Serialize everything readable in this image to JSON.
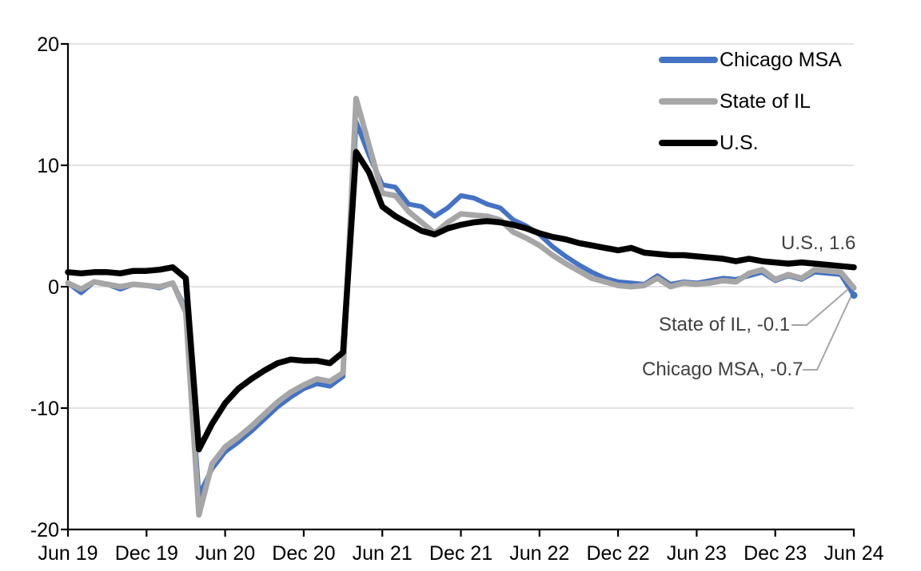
{
  "chart_data": {
    "type": "line",
    "title": "",
    "xlabel": "",
    "ylabel": "",
    "ylim": [
      -20,
      20
    ],
    "y_ticks": [
      -20,
      -10,
      0,
      10,
      20
    ],
    "y_ticklabels": [
      "-20",
      "-10",
      "0",
      "10",
      "20"
    ],
    "x_ticklabels": [
      "Jun 19",
      "Dec 19",
      "Jun 20",
      "Dec 20",
      "Jun 21",
      "Dec 21",
      "Jun 22",
      "Dec 22",
      "Jun 23",
      "Dec 23",
      "Jun 24"
    ],
    "grid": "horizontal",
    "legend_position": "top-right",
    "x": [
      "Jun 19",
      "Jul 19",
      "Aug 19",
      "Sep 19",
      "Oct 19",
      "Nov 19",
      "Dec 19",
      "Jan 20",
      "Feb 20",
      "Mar 20",
      "Apr 20",
      "May 20",
      "Jun 20",
      "Jul 20",
      "Aug 20",
      "Sep 20",
      "Oct 20",
      "Nov 20",
      "Dec 20",
      "Jan 21",
      "Feb 21",
      "Mar 21",
      "Apr 21",
      "May 21",
      "Jun 21",
      "Jul 21",
      "Aug 21",
      "Sep 21",
      "Oct 21",
      "Nov 21",
      "Dec 21",
      "Jan 22",
      "Feb 22",
      "Mar 22",
      "Apr 22",
      "May 22",
      "Jun 22",
      "Jul 22",
      "Aug 22",
      "Sep 22",
      "Oct 22",
      "Nov 22",
      "Dec 22",
      "Jan 23",
      "Feb 23",
      "Mar 23",
      "Apr 23",
      "May 23",
      "Jun 23",
      "Jul 23",
      "Aug 23",
      "Sep 23",
      "Oct 23",
      "Nov 23",
      "Dec 23",
      "Jan 24",
      "Feb 24",
      "Mar 24",
      "Apr 24",
      "May 24",
      "Jun 24"
    ],
    "series": [
      {
        "name": "Chicago MSA",
        "color": "#4472C4",
        "end_marker": true,
        "values": [
          0.3,
          -0.5,
          0.4,
          0.2,
          -0.2,
          0.2,
          0.1,
          -0.1,
          0.3,
          -1.8,
          -17.2,
          -15.0,
          -13.6,
          -12.8,
          -11.9,
          -10.9,
          -9.9,
          -9.1,
          -8.4,
          -8.0,
          -8.2,
          -7.4,
          13.6,
          10.8,
          8.4,
          8.2,
          6.8,
          6.6,
          5.8,
          6.5,
          7.5,
          7.3,
          6.8,
          6.5,
          5.5,
          5.0,
          4.3,
          3.3,
          2.5,
          1.8,
          1.2,
          0.7,
          0.4,
          0.3,
          0.2,
          0.9,
          0.2,
          0.4,
          0.3,
          0.5,
          0.7,
          0.6,
          0.9,
          1.2,
          0.5,
          0.9,
          0.6,
          1.2,
          1.1,
          1.0,
          -0.7
        ]
      },
      {
        "name": "State of IL",
        "color": "#A6A6A6",
        "end_marker": false,
        "values": [
          0.3,
          -0.2,
          0.4,
          0.2,
          0.0,
          0.2,
          0.1,
          0.0,
          0.3,
          -2.1,
          -18.8,
          -14.6,
          -13.2,
          -12.4,
          -11.5,
          -10.5,
          -9.5,
          -8.7,
          -8.1,
          -7.6,
          -7.8,
          -7.1,
          15.5,
          11.6,
          7.7,
          7.5,
          6.2,
          5.3,
          4.4,
          5.3,
          6.0,
          5.9,
          5.8,
          5.5,
          4.5,
          4.0,
          3.4,
          2.6,
          1.9,
          1.3,
          0.7,
          0.4,
          0.1,
          0.0,
          0.1,
          0.7,
          0.0,
          0.3,
          0.2,
          0.3,
          0.5,
          0.4,
          1.1,
          1.4,
          0.6,
          1.0,
          0.7,
          1.4,
          1.3,
          1.2,
          -0.1
        ]
      },
      {
        "name": "U.S.",
        "color": "#000000",
        "end_marker": false,
        "values": [
          1.2,
          1.1,
          1.2,
          1.2,
          1.1,
          1.3,
          1.3,
          1.4,
          1.6,
          0.7,
          -13.4,
          -11.3,
          -9.6,
          -8.4,
          -7.6,
          -6.9,
          -6.3,
          -6.0,
          -6.1,
          -6.1,
          -6.3,
          -5.4,
          11.1,
          9.4,
          6.6,
          5.8,
          5.2,
          4.6,
          4.3,
          4.8,
          5.1,
          5.3,
          5.4,
          5.3,
          5.1,
          4.8,
          4.4,
          4.1,
          3.9,
          3.6,
          3.4,
          3.2,
          3.0,
          3.2,
          2.8,
          2.7,
          2.6,
          2.6,
          2.5,
          2.4,
          2.3,
          2.1,
          2.3,
          2.1,
          2.0,
          1.9,
          2.0,
          1.9,
          1.8,
          1.7,
          1.6
        ]
      }
    ],
    "annotations": [
      {
        "text": "U.S., 1.6",
        "series": "U.S.",
        "value": 1.6
      },
      {
        "text": "State of IL, -0.1",
        "series": "State of IL",
        "value": -0.1
      },
      {
        "text": "Chicago MSA, -0.7",
        "series": "Chicago MSA",
        "value": -0.7
      }
    ]
  },
  "colors": {
    "background": "#FFFFFF",
    "grid": "#D9D9D9",
    "axis": "#000000",
    "annotation_text": "#404040",
    "leader_line": "#A6A6A6"
  }
}
